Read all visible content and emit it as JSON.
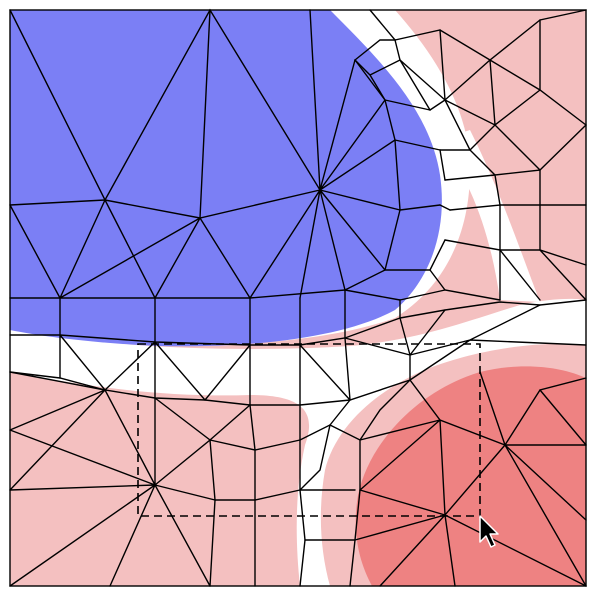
{
  "canvas": {
    "background": "#ffffff",
    "frame_color": "#000000"
  },
  "regions": {
    "blue_field": "#7b7ff5",
    "light_red_field": "#f4c0c0",
    "dark_red_field": "#ee8282",
    "white_band": "#ffffff"
  },
  "mesh": {
    "edge_color": "#000000"
  },
  "selection": {
    "style": "dashed",
    "color": "#000000"
  },
  "cursor": {
    "icon": "arrow-pointer-icon",
    "fill": "#000000",
    "outline": "#ffffff"
  }
}
